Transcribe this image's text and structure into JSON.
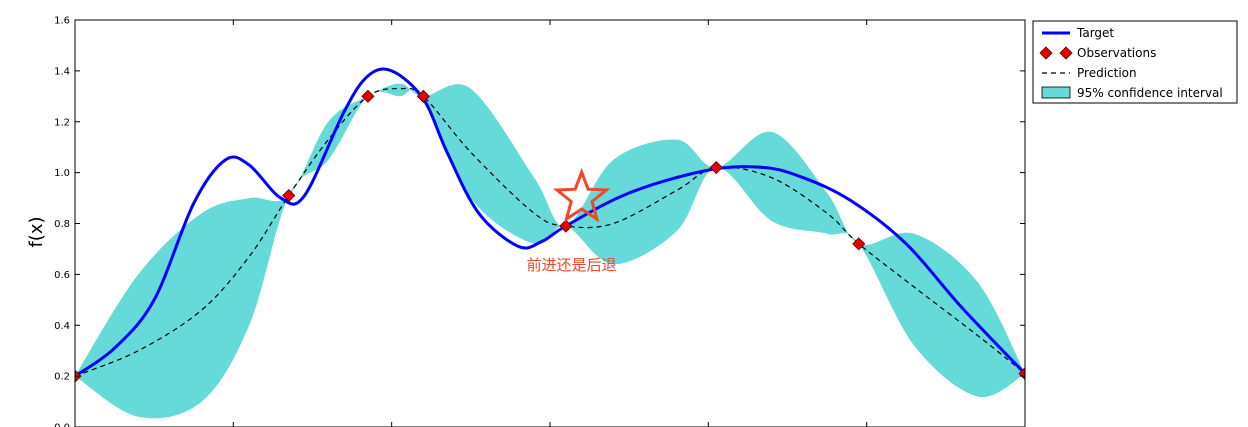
{
  "chart_data": {
    "type": "line",
    "ylabel": "f(x)",
    "ylim": [
      0.0,
      1.6
    ],
    "xlim": [
      0,
      6
    ],
    "yticks": [
      0.0,
      0.2,
      0.4,
      0.6,
      0.8,
      1.0,
      1.2,
      1.4,
      1.6
    ],
    "ytick_labels": [
      "0.0",
      "0.2",
      "0.4",
      "0.6",
      "0.8",
      "1.0",
      "1.2",
      "1.4",
      "1.6"
    ],
    "xticks": [
      1,
      2,
      3,
      4,
      5
    ],
    "legend_position": "outside-top-right",
    "colors": {
      "target": "#0000ff",
      "observations": "#e60000",
      "prediction": "#000000",
      "confidence": "#66d9d9",
      "annotation": "#f0462a"
    },
    "series": [
      {
        "name": "Target",
        "style": "line",
        "x": [
          0.0,
          0.25,
          0.5,
          0.75,
          0.95,
          1.1,
          1.3,
          1.45,
          1.7,
          1.85,
          2.0,
          2.2,
          2.35,
          2.55,
          2.8,
          2.95,
          3.1,
          3.5,
          4.0,
          4.35,
          4.6,
          4.9,
          5.25,
          5.6,
          6.0
        ],
        "y": [
          0.2,
          0.31,
          0.5,
          0.88,
          1.05,
          1.03,
          0.9,
          0.91,
          1.24,
          1.38,
          1.4,
          1.29,
          1.08,
          0.84,
          0.71,
          0.73,
          0.79,
          0.92,
          1.01,
          1.02,
          0.98,
          0.89,
          0.72,
          0.47,
          0.21
        ]
      },
      {
        "name": "Observations",
        "style": "marker",
        "x": [
          0.0,
          1.35,
          1.85,
          2.2,
          3.1,
          4.05,
          4.95,
          6.0
        ],
        "y": [
          0.2,
          0.91,
          1.3,
          1.3,
          0.79,
          1.02,
          0.72,
          0.21
        ]
      },
      {
        "name": "Prediction",
        "style": "dashed",
        "x": [
          0.0,
          0.4,
          0.8,
          1.1,
          1.35,
          1.6,
          1.85,
          2.05,
          2.2,
          2.5,
          2.9,
          3.1,
          3.4,
          3.8,
          4.05,
          4.4,
          4.75,
          4.95,
          5.3,
          5.7,
          6.0
        ],
        "y": [
          0.2,
          0.3,
          0.46,
          0.67,
          0.91,
          1.13,
          1.3,
          1.33,
          1.3,
          1.08,
          0.84,
          0.79,
          0.8,
          0.93,
          1.02,
          0.98,
          0.84,
          0.72,
          0.55,
          0.36,
          0.21
        ]
      },
      {
        "name": "95% confidence interval",
        "style": "band",
        "x": [
          0.0,
          0.4,
          0.8,
          1.1,
          1.35,
          1.6,
          1.85,
          2.05,
          2.2,
          2.5,
          2.9,
          3.1,
          3.4,
          3.8,
          4.05,
          4.4,
          4.75,
          4.95,
          5.3,
          5.7,
          6.0
        ],
        "upper": [
          0.2,
          0.6,
          0.84,
          0.9,
          0.91,
          1.2,
          1.3,
          1.35,
          1.3,
          1.33,
          0.98,
          0.79,
          1.05,
          1.13,
          1.02,
          1.16,
          0.92,
          0.72,
          0.76,
          0.57,
          0.21
        ],
        "lower": [
          0.2,
          0.04,
          0.1,
          0.4,
          0.91,
          1.05,
          1.3,
          1.3,
          1.3,
          0.9,
          0.72,
          0.79,
          0.64,
          0.77,
          1.02,
          0.81,
          0.76,
          0.72,
          0.32,
          0.12,
          0.21
        ]
      }
    ],
    "annotations": [
      {
        "text": "前进还是后退",
        "marker": "star",
        "x": 3.2,
        "y": 0.9
      }
    ]
  },
  "legend": [
    {
      "label": "Target",
      "symbol": "line"
    },
    {
      "label": "Observations",
      "symbol": "diamond-pair"
    },
    {
      "label": "Prediction",
      "symbol": "dashed"
    },
    {
      "label": "95% confidence interval",
      "symbol": "patch"
    }
  ]
}
